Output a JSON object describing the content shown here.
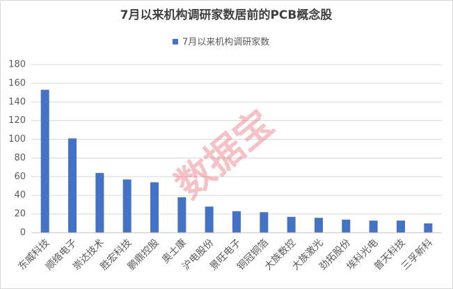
{
  "chart_data": {
    "type": "bar",
    "title": "7月以来机构调研家数居前的PCB概念股",
    "watermark": "数据宝",
    "categories": [
      "东威科技",
      "顺络电子",
      "崇达技术",
      "胜宏科技",
      "鹏鼎控股",
      "奥士康",
      "沪电股份",
      "景旺电子",
      "铜冠铜箔",
      "大族数控",
      "大族激光",
      "劲拓股份",
      "埃科光电",
      "普天科技",
      "三孚新科"
    ],
    "series": [
      {
        "name": "7月以来机构调研家数",
        "color": "#4472c4",
        "values": [
          153,
          101,
          64,
          57,
          54,
          38,
          28,
          23,
          22,
          17,
          16,
          14,
          13,
          13,
          10
        ]
      }
    ],
    "ylim": [
      0,
      180
    ],
    "yticks": [
      0,
      20,
      40,
      60,
      80,
      100,
      120,
      140,
      160,
      180
    ],
    "grid": true,
    "legend": "top"
  }
}
